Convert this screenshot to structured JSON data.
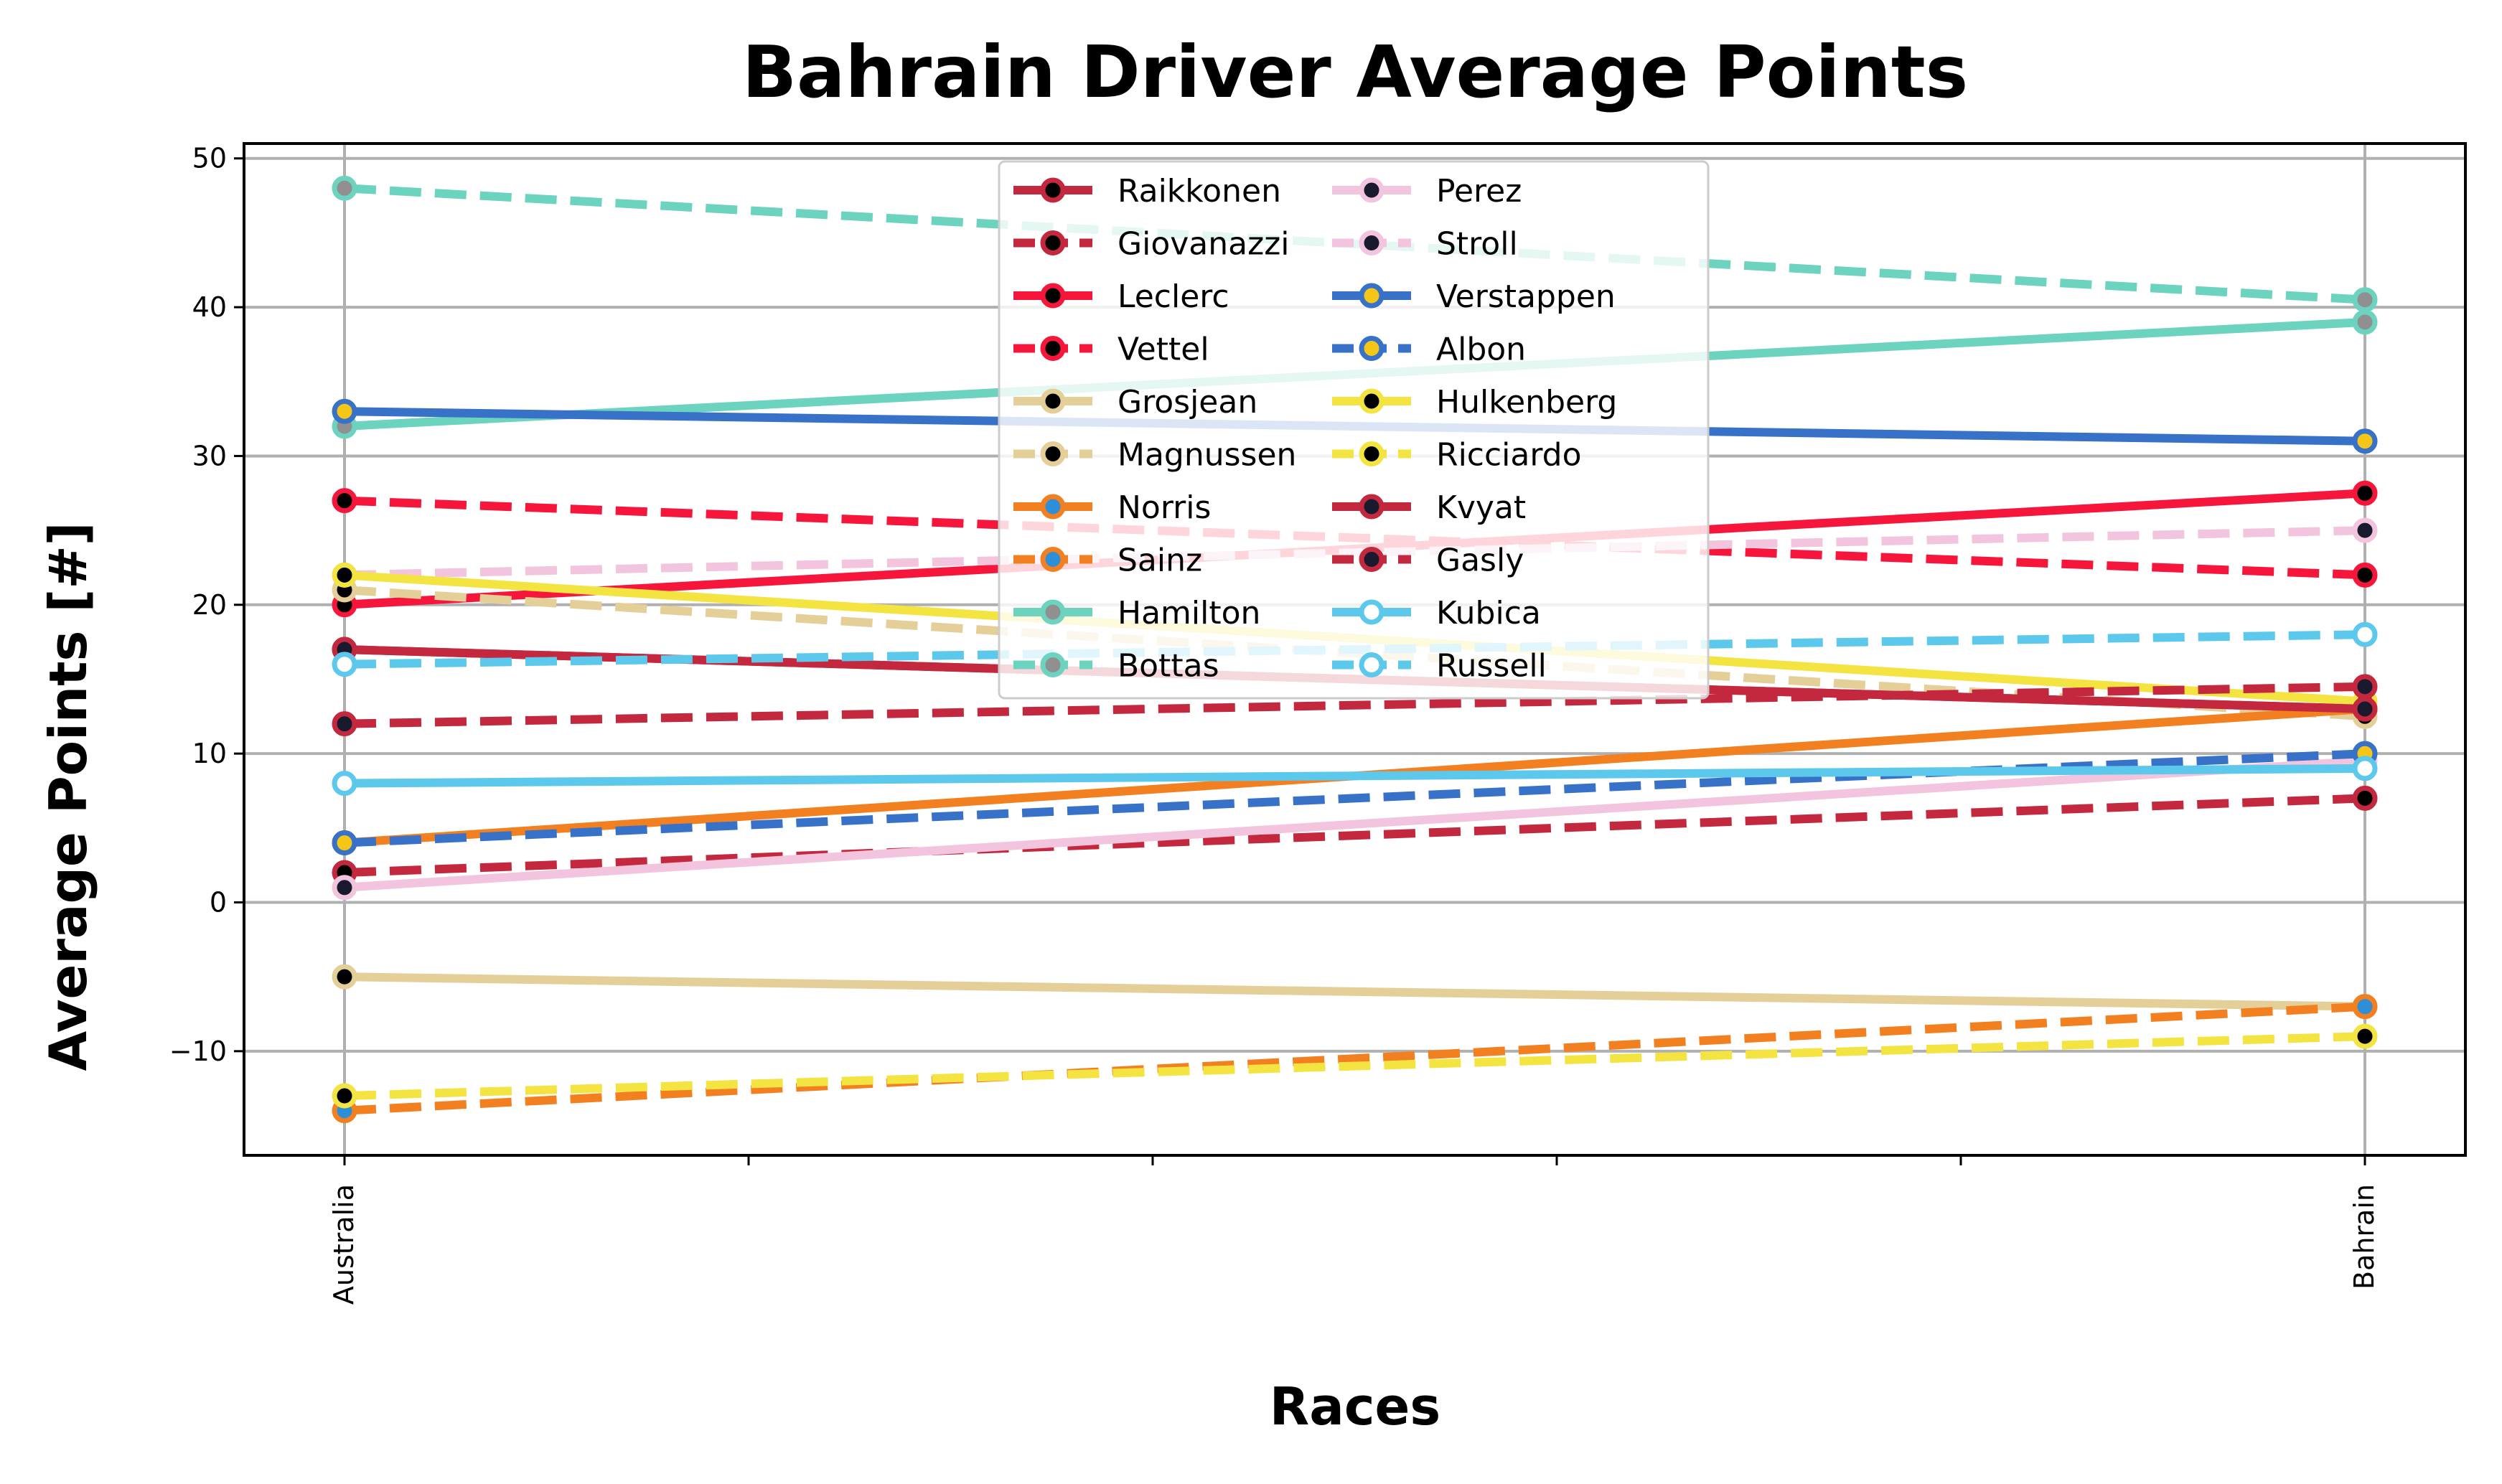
{
  "chart_data": {
    "type": "line",
    "title": "Bahrain Driver Average Points",
    "xlabel": "Races",
    "ylabel": "Average Points [#]",
    "categories": [
      "Australia",
      "Bahrain"
    ],
    "x_minor_ticks": 4,
    "ylim": [
      -17,
      51
    ],
    "yticks": [
      {
        "value": 50,
        "label": "50"
      },
      {
        "value": 40,
        "label": "40"
      },
      {
        "value": 30,
        "label": "30"
      },
      {
        "value": 20,
        "label": "20"
      },
      {
        "value": 10,
        "label": "10"
      },
      {
        "value": 0,
        "label": "0"
      },
      {
        "value": -10,
        "label": "−10"
      }
    ],
    "grid": true,
    "legend_position": "upper-center",
    "legend_columns": 2,
    "series": [
      {
        "name": "Raikkonen",
        "values": [
          17,
          13
        ],
        "color": "#c4283e",
        "dash": "solid",
        "marker_fill": "#000000"
      },
      {
        "name": "Giovanazzi",
        "values": [
          2,
          7
        ],
        "color": "#c4283e",
        "dash": "dashed",
        "marker_fill": "#000000"
      },
      {
        "name": "Leclerc",
        "values": [
          20,
          27.5
        ],
        "color": "#f7163b",
        "dash": "solid",
        "marker_fill": "#000000"
      },
      {
        "name": "Vettel",
        "values": [
          27,
          22
        ],
        "color": "#f7163b",
        "dash": "dashed",
        "marker_fill": "#000000"
      },
      {
        "name": "Grosjean",
        "values": [
          -5,
          -7
        ],
        "color": "#e5cf99",
        "dash": "solid",
        "marker_fill": "#000000"
      },
      {
        "name": "Magnussen",
        "values": [
          21,
          12.5
        ],
        "color": "#e5cf99",
        "dash": "dashed",
        "marker_fill": "#000000"
      },
      {
        "name": "Norris",
        "values": [
          4,
          13
        ],
        "color": "#f38020",
        "dash": "solid",
        "marker_fill": "#2f8ed8"
      },
      {
        "name": "Sainz",
        "values": [
          -14,
          -7
        ],
        "color": "#f38020",
        "dash": "dashed",
        "marker_fill": "#2f8ed8"
      },
      {
        "name": "Hamilton",
        "values": [
          32,
          39
        ],
        "color": "#6cd3be",
        "dash": "solid",
        "marker_fill": "#909090"
      },
      {
        "name": "Bottas",
        "values": [
          48,
          40.5
        ],
        "color": "#6cd3be",
        "dash": "dashed",
        "marker_fill": "#909090"
      },
      {
        "name": "Perez",
        "values": [
          1,
          9.5
        ],
        "color": "#f3c4dd",
        "dash": "solid",
        "marker_fill": "#1a1a2e"
      },
      {
        "name": "Stroll",
        "values": [
          22,
          25
        ],
        "color": "#f3c4dd",
        "dash": "dashed",
        "marker_fill": "#1a1a2e"
      },
      {
        "name": "Verstappen",
        "values": [
          33,
          31
        ],
        "color": "#3771c8",
        "dash": "solid",
        "marker_fill": "#f5c518"
      },
      {
        "name": "Albon",
        "values": [
          4,
          10
        ],
        "color": "#3771c8",
        "dash": "dashed",
        "marker_fill": "#f5c518"
      },
      {
        "name": "Hulkenberg",
        "values": [
          22,
          13.5
        ],
        "color": "#f4e442",
        "dash": "solid",
        "marker_fill": "#000000"
      },
      {
        "name": "Ricciardo",
        "values": [
          -13,
          -9
        ],
        "color": "#f4e442",
        "dash": "dashed",
        "marker_fill": "#000000"
      },
      {
        "name": "Kvyat",
        "values": [
          17,
          13
        ],
        "color": "#c4283e",
        "dash": "solid",
        "marker_fill": "#1a1a2e"
      },
      {
        "name": "Gasly",
        "values": [
          12,
          14.5
        ],
        "color": "#c4283e",
        "dash": "dashed",
        "marker_fill": "#1a1a2e"
      },
      {
        "name": "Kubica",
        "values": [
          8,
          9
        ],
        "color": "#5bc8ec",
        "dash": "solid",
        "marker_fill": "#ffffff"
      },
      {
        "name": "Russell",
        "values": [
          16,
          18
        ],
        "color": "#5bc8ec",
        "dash": "dashed",
        "marker_fill": "#ffffff"
      }
    ]
  }
}
